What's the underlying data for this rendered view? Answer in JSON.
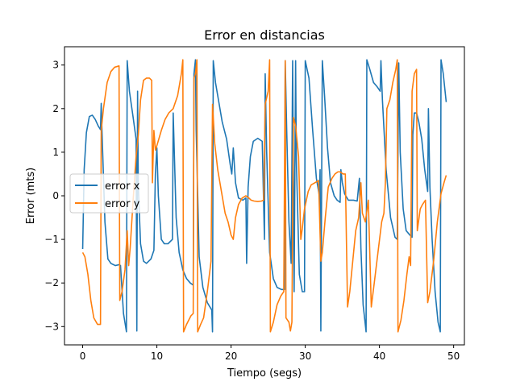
{
  "chart_data": {
    "type": "line",
    "title": "Error en distancias",
    "xlabel": "Tiempo (segs)",
    "ylabel": "Error (mts)",
    "xlim": [
      -2.45,
      51.45
    ],
    "ylim": [
      -3.42,
      3.42
    ],
    "xticks": [
      0,
      10,
      20,
      30,
      40,
      50
    ],
    "yticks": [
      -3,
      -2,
      -1,
      0,
      1,
      2,
      3
    ],
    "grid": false,
    "legend_position": "center-left",
    "series": [
      {
        "name": "error x",
        "color": "#1f77b4",
        "points": [
          [
            0.0,
            -1.22
          ],
          [
            0.2,
            0.6
          ],
          [
            0.5,
            1.45
          ],
          [
            0.9,
            1.82
          ],
          [
            1.3,
            1.85
          ],
          [
            1.7,
            1.75
          ],
          [
            2.1,
            1.6
          ],
          [
            2.4,
            1.52
          ],
          [
            2.5,
            2.12
          ],
          [
            2.6,
            1.5
          ],
          [
            3.0,
            -0.6
          ],
          [
            3.4,
            -1.45
          ],
          [
            3.8,
            -1.55
          ],
          [
            4.4,
            -1.6
          ],
          [
            4.9,
            -1.58
          ],
          [
            5.1,
            -1.6
          ],
          [
            5.5,
            -2.7
          ],
          [
            5.9,
            -3.12
          ],
          [
            6.0,
            3.1
          ],
          [
            6.3,
            2.4
          ],
          [
            6.8,
            1.8
          ],
          [
            7.2,
            1.3
          ],
          [
            7.3,
            -3.1
          ],
          [
            7.4,
            2.4
          ],
          [
            7.5,
            0.2
          ],
          [
            7.8,
            -1.1
          ],
          [
            8.2,
            -1.5
          ],
          [
            8.6,
            -1.55
          ],
          [
            9.2,
            -1.45
          ],
          [
            9.6,
            -1.25
          ],
          [
            9.8,
            0.5
          ],
          [
            10.0,
            1.1
          ],
          [
            10.2,
            0.0
          ],
          [
            10.6,
            -1.0
          ],
          [
            11.0,
            -1.1
          ],
          [
            11.5,
            -1.1
          ],
          [
            12.1,
            -1.0
          ],
          [
            12.2,
            1.9
          ],
          [
            12.3,
            1.3
          ],
          [
            12.6,
            -0.5
          ],
          [
            13.0,
            -1.3
          ],
          [
            13.5,
            -1.7
          ],
          [
            14.0,
            -1.9
          ],
          [
            14.5,
            -2.0
          ],
          [
            14.9,
            -2.05
          ],
          [
            15.0,
            2.8
          ],
          [
            15.2,
            3.12
          ],
          [
            15.3,
            1.5
          ],
          [
            15.7,
            -1.4
          ],
          [
            16.2,
            -2.1
          ],
          [
            16.8,
            -2.45
          ],
          [
            17.4,
            -2.62
          ],
          [
            17.5,
            -3.12
          ],
          [
            17.6,
            3.1
          ],
          [
            17.9,
            2.6
          ],
          [
            18.3,
            2.2
          ],
          [
            18.8,
            1.7
          ],
          [
            19.4,
            1.3
          ],
          [
            19.9,
            0.7
          ],
          [
            20.1,
            0.5
          ],
          [
            20.3,
            1.1
          ],
          [
            20.6,
            0.3
          ],
          [
            21.0,
            -0.05
          ],
          [
            21.6,
            -0.1
          ],
          [
            22.0,
            -0.05
          ],
          [
            22.1,
            -1.55
          ],
          [
            22.3,
            0.2
          ],
          [
            22.6,
            0.9
          ],
          [
            23.0,
            1.25
          ],
          [
            23.6,
            1.32
          ],
          [
            24.2,
            1.25
          ],
          [
            24.5,
            -1.0
          ],
          [
            24.6,
            2.8
          ],
          [
            24.8,
            1.0
          ],
          [
            25.2,
            -1.3
          ],
          [
            25.7,
            -1.9
          ],
          [
            26.2,
            -2.1
          ],
          [
            26.8,
            -2.15
          ],
          [
            27.2,
            -2.15
          ],
          [
            27.3,
            3.1
          ],
          [
            27.5,
            1.5
          ],
          [
            27.8,
            -0.6
          ],
          [
            28.1,
            -1.55
          ],
          [
            28.3,
            3.1
          ],
          [
            28.5,
            -2.2
          ],
          [
            28.7,
            3.1
          ],
          [
            28.8,
            0.8
          ],
          [
            29.2,
            -1.8
          ],
          [
            29.6,
            -2.2
          ],
          [
            29.9,
            -2.2
          ],
          [
            30.0,
            3.1
          ],
          [
            30.5,
            2.7
          ],
          [
            31.0,
            1.5
          ],
          [
            31.5,
            0.4
          ],
          [
            31.9,
            0.0
          ],
          [
            32.0,
            0.6
          ],
          [
            32.1,
            -3.1
          ],
          [
            32.3,
            3.1
          ],
          [
            32.6,
            2.3
          ],
          [
            33.0,
            1.1
          ],
          [
            33.4,
            0.3
          ],
          [
            33.9,
            0.0
          ],
          [
            34.3,
            -0.1
          ],
          [
            34.7,
            -0.15
          ],
          [
            34.8,
            0.6
          ],
          [
            35.0,
            0.3
          ],
          [
            35.3,
            0.05
          ],
          [
            35.8,
            -0.1
          ],
          [
            36.5,
            -0.1
          ],
          [
            37.0,
            -0.12
          ],
          [
            37.3,
            0.4
          ],
          [
            37.5,
            -1.2
          ],
          [
            37.8,
            -2.5
          ],
          [
            38.2,
            -3.12
          ],
          [
            38.3,
            3.12
          ],
          [
            38.7,
            2.9
          ],
          [
            39.2,
            2.6
          ],
          [
            39.7,
            2.5
          ],
          [
            40.1,
            2.4
          ],
          [
            40.2,
            3.1
          ],
          [
            40.4,
            2.2
          ],
          [
            40.9,
            0.6
          ],
          [
            41.5,
            -0.5
          ],
          [
            42.1,
            -0.95
          ],
          [
            42.4,
            -1.0
          ],
          [
            42.6,
            3.05
          ],
          [
            42.8,
            1.0
          ],
          [
            43.2,
            -0.3
          ],
          [
            43.6,
            -0.8
          ],
          [
            44.1,
            -0.9
          ],
          [
            44.4,
            -0.95
          ],
          [
            44.5,
            1.4
          ],
          [
            44.7,
            1.9
          ],
          [
            45.0,
            1.9
          ],
          [
            45.3,
            1.7
          ],
          [
            45.7,
            1.3
          ],
          [
            46.1,
            0.6
          ],
          [
            46.5,
            0.1
          ],
          [
            46.6,
            2.0
          ],
          [
            46.8,
            0.2
          ],
          [
            47.1,
            -1.0
          ],
          [
            47.5,
            -2.2
          ],
          [
            47.9,
            -2.9
          ],
          [
            48.2,
            -3.12
          ],
          [
            48.3,
            3.12
          ],
          [
            48.6,
            2.8
          ],
          [
            49.0,
            2.15
          ]
        ]
      },
      {
        "name": "error y",
        "color": "#ff7f0e",
        "points": [
          [
            0.0,
            -1.3
          ],
          [
            0.3,
            -1.4
          ],
          [
            0.7,
            -1.8
          ],
          [
            1.1,
            -2.4
          ],
          [
            1.5,
            -2.8
          ],
          [
            2.0,
            -2.95
          ],
          [
            2.4,
            -2.95
          ],
          [
            2.5,
            1.5
          ],
          [
            2.8,
            2.0
          ],
          [
            3.3,
            2.6
          ],
          [
            3.8,
            2.85
          ],
          [
            4.3,
            2.95
          ],
          [
            4.9,
            2.98
          ],
          [
            5.0,
            -2.4
          ],
          [
            5.3,
            -2.2
          ],
          [
            5.7,
            -1.7
          ],
          [
            6.0,
            -0.8
          ],
          [
            6.2,
            -1.6
          ],
          [
            6.4,
            -1.2
          ],
          [
            6.8,
            -0.1
          ],
          [
            7.2,
            0.9
          ],
          [
            7.5,
            1.4
          ],
          [
            7.8,
            2.2
          ],
          [
            8.2,
            2.65
          ],
          [
            8.6,
            2.7
          ],
          [
            9.0,
            2.7
          ],
          [
            9.3,
            2.65
          ],
          [
            9.4,
            0.3
          ],
          [
            9.6,
            1.5
          ],
          [
            9.8,
            1.05
          ],
          [
            10.0,
            1.15
          ],
          [
            10.6,
            1.5
          ],
          [
            11.1,
            1.75
          ],
          [
            11.6,
            1.9
          ],
          [
            12.2,
            2.0
          ],
          [
            12.8,
            2.3
          ],
          [
            13.3,
            2.8
          ],
          [
            13.5,
            3.12
          ],
          [
            13.6,
            -3.12
          ],
          [
            14.0,
            -2.95
          ],
          [
            14.6,
            -2.75
          ],
          [
            14.9,
            -2.7
          ],
          [
            15.0,
            2.7
          ],
          [
            15.2,
            2.8
          ],
          [
            15.4,
            3.12
          ],
          [
            15.5,
            -3.12
          ],
          [
            15.9,
            -2.95
          ],
          [
            16.3,
            -2.8
          ],
          [
            16.8,
            -2.2
          ],
          [
            17.3,
            -1.5
          ],
          [
            17.5,
            2.1
          ],
          [
            17.8,
            1.2
          ],
          [
            18.2,
            0.6
          ],
          [
            18.7,
            0.1
          ],
          [
            19.2,
            -0.4
          ],
          [
            19.6,
            -0.6
          ],
          [
            20.0,
            -0.9
          ],
          [
            20.3,
            -1.0
          ],
          [
            20.6,
            -0.5
          ],
          [
            21.0,
            -0.2
          ],
          [
            21.5,
            -0.05
          ],
          [
            22.0,
            0.0
          ],
          [
            22.4,
            -0.05
          ],
          [
            22.7,
            -0.1
          ],
          [
            23.1,
            -0.12
          ],
          [
            23.6,
            -0.13
          ],
          [
            24.1,
            -0.12
          ],
          [
            24.4,
            -0.1
          ],
          [
            24.6,
            2.1
          ],
          [
            25.0,
            2.4
          ],
          [
            25.2,
            3.12
          ],
          [
            25.3,
            -3.12
          ],
          [
            25.7,
            -2.9
          ],
          [
            26.2,
            -2.5
          ],
          [
            26.7,
            -2.3
          ],
          [
            27.1,
            -2.2
          ],
          [
            27.3,
            3.1
          ],
          [
            27.4,
            -2.8
          ],
          [
            27.8,
            -2.9
          ],
          [
            28.0,
            -3.1
          ],
          [
            28.2,
            -2.9
          ],
          [
            28.4,
            1.8
          ],
          [
            28.7,
            1.6
          ],
          [
            29.1,
            0.9
          ],
          [
            29.4,
            -1.0
          ],
          [
            29.6,
            -0.75
          ],
          [
            29.9,
            -0.3
          ],
          [
            30.4,
            0.1
          ],
          [
            30.8,
            0.25
          ],
          [
            31.3,
            0.3
          ],
          [
            31.8,
            0.35
          ],
          [
            32.1,
            -1.5
          ],
          [
            32.3,
            -1.3
          ],
          [
            32.7,
            -0.5
          ],
          [
            33.1,
            0.2
          ],
          [
            33.6,
            0.4
          ],
          [
            34.0,
            0.5
          ],
          [
            34.4,
            0.55
          ],
          [
            34.7,
            0.55
          ],
          [
            35.1,
            0.5
          ],
          [
            35.4,
            0.5
          ],
          [
            35.7,
            -2.55
          ],
          [
            36.0,
            -2.2
          ],
          [
            36.4,
            -1.5
          ],
          [
            36.8,
            -0.8
          ],
          [
            37.2,
            -0.5
          ],
          [
            37.5,
            0.3
          ],
          [
            37.7,
            -0.4
          ],
          [
            38.1,
            -0.6
          ],
          [
            38.5,
            -0.1
          ],
          [
            38.9,
            -2.55
          ],
          [
            39.3,
            -2.0
          ],
          [
            39.8,
            -1.3
          ],
          [
            40.3,
            -0.6
          ],
          [
            40.6,
            -0.4
          ],
          [
            40.8,
            0.3
          ],
          [
            41.0,
            2.0
          ],
          [
            41.4,
            2.2
          ],
          [
            41.8,
            2.6
          ],
          [
            42.2,
            2.9
          ],
          [
            42.4,
            3.12
          ],
          [
            42.5,
            -3.12
          ],
          [
            42.9,
            -2.85
          ],
          [
            43.3,
            -2.4
          ],
          [
            43.7,
            -1.8
          ],
          [
            44.0,
            -1.4
          ],
          [
            44.2,
            -1.6
          ],
          [
            44.4,
            2.4
          ],
          [
            44.7,
            2.8
          ],
          [
            45.0,
            2.9
          ],
          [
            45.1,
            -0.8
          ],
          [
            45.5,
            -0.3
          ],
          [
            45.8,
            -0.2
          ],
          [
            46.2,
            -0.1
          ],
          [
            46.5,
            -2.45
          ],
          [
            46.8,
            -2.2
          ],
          [
            47.3,
            -1.5
          ],
          [
            47.8,
            -0.6
          ],
          [
            48.3,
            0.05
          ],
          [
            48.7,
            0.3
          ],
          [
            49.0,
            0.47
          ]
        ]
      }
    ]
  }
}
